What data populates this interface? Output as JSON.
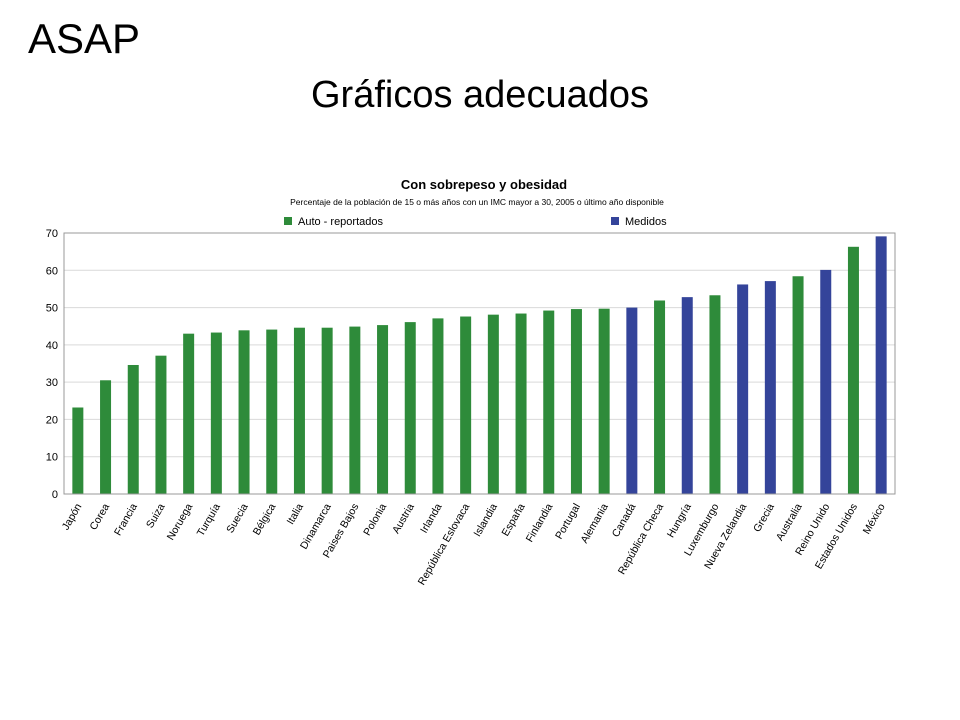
{
  "slide": {
    "label": "ASAP",
    "title": "Gráficos adecuados"
  },
  "colors": {
    "self_reported": "#2e8b3a",
    "measured": "#34449a",
    "grid": "#d9d9d9"
  },
  "chart_data": {
    "type": "bar",
    "title": "Con sobrepeso y obesidad",
    "subtitle": "Percentaje de la población de 15 o más años con un IMC mayor a 30, 2005 o último año disponible",
    "xlabel": "",
    "ylabel": "",
    "ylim": [
      0,
      70
    ],
    "yticks": [
      0,
      10,
      20,
      30,
      40,
      50,
      60,
      70
    ],
    "grid": true,
    "legend_position": "top",
    "legend": [
      {
        "name": "Auto - reportados",
        "key": "self_reported"
      },
      {
        "name": "Medidos",
        "key": "measured"
      }
    ],
    "categories": [
      "Japón",
      "Corea",
      "Francia",
      "Suiza",
      "Noruega",
      "Turquía",
      "Suecia",
      "Bélgica",
      "Italia",
      "Dinamarca",
      "Paises Bajos",
      "Polonia",
      "Austria",
      "Irlanda",
      "República Eslovaca",
      "Islandia",
      "España",
      "Finlandia",
      "Portugal",
      "Alemania",
      "Canadá",
      "República Checa",
      "Hungría",
      "Luxemburgo",
      "Nueva Zelandia",
      "Grecia",
      "Australia",
      "Reino Unido",
      "Estados Unidos",
      "México"
    ],
    "values": [
      23.2,
      30.5,
      34.6,
      37.1,
      43.0,
      43.3,
      43.9,
      44.1,
      44.6,
      44.6,
      44.9,
      45.3,
      46.1,
      47.1,
      47.6,
      48.1,
      48.4,
      49.2,
      49.6,
      49.7,
      50.0,
      51.9,
      52.8,
      53.3,
      56.2,
      57.1,
      58.4,
      60.1,
      66.3,
      69.1
    ],
    "series_type": [
      "self_reported",
      "self_reported",
      "self_reported",
      "self_reported",
      "self_reported",
      "self_reported",
      "self_reported",
      "self_reported",
      "self_reported",
      "self_reported",
      "self_reported",
      "self_reported",
      "self_reported",
      "self_reported",
      "self_reported",
      "self_reported",
      "self_reported",
      "self_reported",
      "self_reported",
      "self_reported",
      "measured",
      "self_reported",
      "measured",
      "self_reported",
      "measured",
      "measured",
      "self_reported",
      "measured",
      "self_reported",
      "measured"
    ]
  }
}
